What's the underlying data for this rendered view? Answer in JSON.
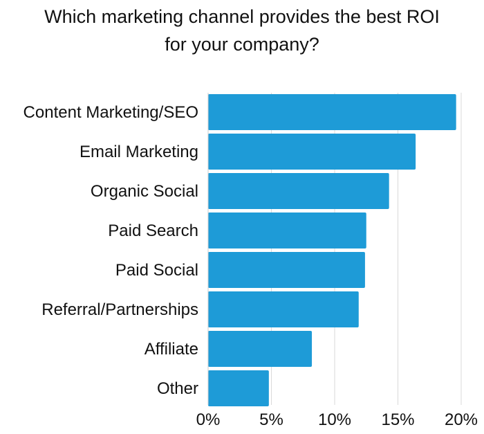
{
  "chart_data": {
    "type": "bar",
    "orientation": "horizontal",
    "title_lines": [
      "Which marketing channel provides the best ROI",
      "for your company?"
    ],
    "categories": [
      "Content Marketing/SEO",
      "Email Marketing",
      "Organic Social",
      "Paid Search",
      "Paid Social",
      "Referral/Partnerships",
      "Affiliate",
      "Other"
    ],
    "values": [
      19.6,
      16.4,
      14.3,
      12.5,
      12.4,
      11.9,
      8.2,
      4.8
    ],
    "xlim": [
      0,
      20
    ],
    "x_ticks": [
      0,
      5,
      10,
      15,
      20
    ],
    "x_tick_labels": [
      "0%",
      "5%",
      "10%",
      "15%",
      "20%"
    ],
    "grid": "vertical",
    "xlabel": "",
    "ylabel": "",
    "colors": {
      "bar": "#1e9bd7",
      "grid": "#d9d9d9",
      "axis": "#cccccc"
    }
  }
}
